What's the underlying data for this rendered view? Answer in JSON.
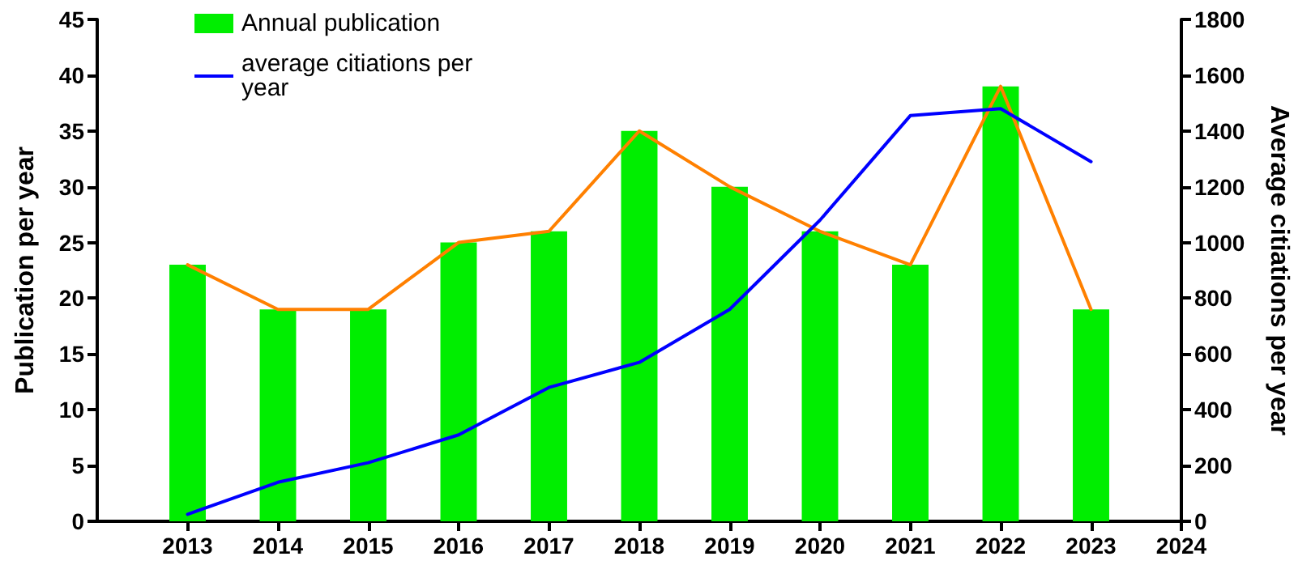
{
  "chart_data": {
    "type": "bar",
    "x": [
      2013,
      2014,
      2015,
      2016,
      2017,
      2018,
      2019,
      2020,
      2021,
      2022,
      2023
    ],
    "ylabel": "Publication per year",
    "y2label": "Average citiations per year",
    "series": [
      {
        "name": "Annual publication",
        "color": "#00ee00",
        "values": [
          23,
          19,
          19,
          25,
          26,
          35,
          30,
          26,
          23,
          39,
          19
        ]
      },
      {
        "type": "line",
        "color": "#ff8000",
        "values": [
          23,
          19,
          19,
          25,
          26,
          35,
          30,
          26,
          23,
          39,
          19
        ]
      },
      {
        "name": "average citiations per year",
        "type": "line",
        "axis": "y2",
        "color": "#0000ff",
        "values": [
          25,
          140,
          210,
          310,
          480,
          570,
          760,
          1080,
          1455,
          1480,
          1290
        ]
      }
    ],
    "xlim": [
      2012,
      2024
    ],
    "xticks": [
      2013,
      2014,
      2015,
      2016,
      2017,
      2018,
      2019,
      2020,
      2021,
      2022,
      2023,
      2024
    ],
    "ylim": [
      0,
      45
    ],
    "yticks": [
      0,
      5,
      10,
      15,
      20,
      25,
      30,
      35,
      40,
      45
    ],
    "y2lim": [
      0,
      1800
    ],
    "y2ticks": [
      0,
      200,
      400,
      600,
      800,
      1000,
      1200,
      1400,
      1600,
      1800
    ],
    "grid": false,
    "legend": "top left",
    "marker": "none",
    "line_style": "solid"
  }
}
